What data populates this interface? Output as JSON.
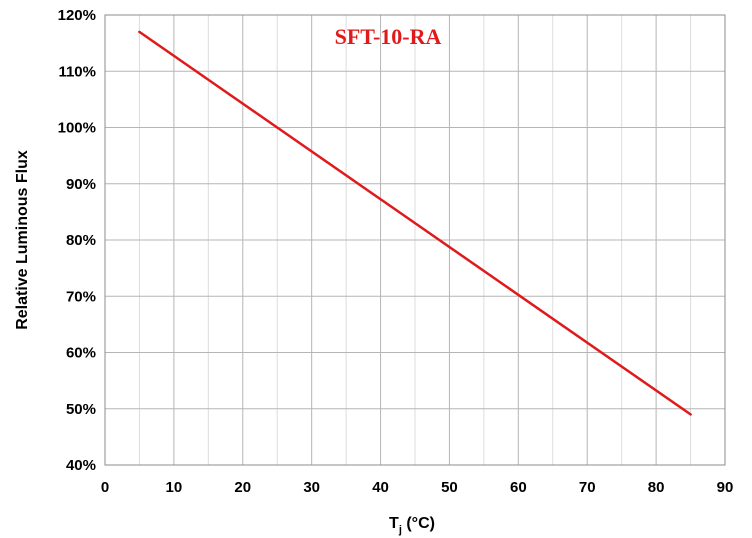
{
  "colors": {
    "series": "#e0191b",
    "title": "#e0191b",
    "grid": "#b5b5b5",
    "border": "#8c8c8c"
  },
  "chart_data": {
    "type": "line",
    "title": "SFT-10-RA",
    "xlabel": "T",
    "xlabel_sub": "j",
    "xlabel_unit": " (°C)",
    "ylabel": "Relative Luminous Flux",
    "xlim": [
      0,
      90
    ],
    "ylim": [
      40,
      120
    ],
    "x_ticks": [
      0,
      10,
      20,
      30,
      40,
      50,
      60,
      70,
      80,
      90
    ],
    "x_tick_labels": [
      "0",
      "10",
      "20",
      "30",
      "40",
      "50",
      "60",
      "70",
      "80",
      "90"
    ],
    "x_minor_ticks": [
      5,
      15,
      25,
      35,
      45,
      55,
      65,
      75,
      85
    ],
    "y_ticks": [
      40,
      50,
      60,
      70,
      80,
      90,
      100,
      110,
      120
    ],
    "y_tick_labels": [
      "40%",
      "50%",
      "60%",
      "70%",
      "80%",
      "90%",
      "100%",
      "110%",
      "120%"
    ],
    "grid": true,
    "series": [
      {
        "x": [
          5,
          25,
          85
        ],
        "y": [
          117,
          100,
          49
        ]
      }
    ]
  }
}
